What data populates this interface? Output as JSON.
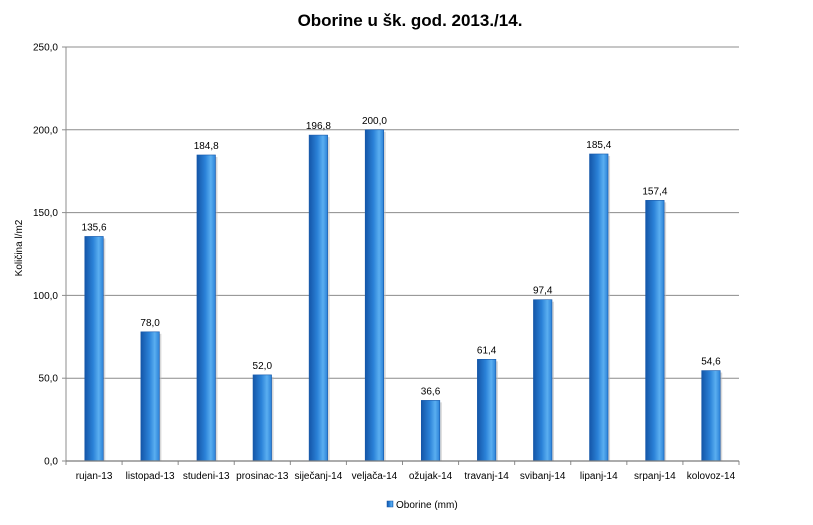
{
  "chart_data": {
    "type": "bar",
    "title": "Oborine u šk. god. 2013./14.",
    "xlabel": "",
    "ylabel": "Količina l/m2",
    "categories": [
      "rujan-13",
      "listopad-13",
      "studeni-13",
      "prosinac-13",
      "siječanj-14",
      "veljača-14",
      "ožujak-14",
      "travanj-14",
      "svibanj-14",
      "lipanj-14",
      "srpanj-14",
      "kolovoz-14"
    ],
    "series": [
      {
        "name": "Oborine (mm)",
        "values": [
          135.6,
          78.0,
          184.8,
          52.0,
          196.8,
          200.0,
          36.6,
          61.4,
          97.4,
          185.4,
          157.4,
          54.6
        ],
        "data_labels": [
          "135,6",
          "78,0",
          "184,8",
          "52,0",
          "196,8",
          "200,0",
          "36,6",
          "61,4",
          "97,4",
          "185,4",
          "157,4",
          "54,6"
        ]
      }
    ],
    "ylim": [
      0,
      250
    ],
    "yticks": [
      0,
      50,
      100,
      150,
      200,
      250
    ],
    "ytick_labels": [
      "0,0",
      "50,0",
      "100,0",
      "150,0",
      "200,0",
      "250,0"
    ],
    "grid": true,
    "legend": {
      "position": "bottom-center",
      "entries": [
        "Oborine (mm)"
      ]
    },
    "colors": {
      "bar_light": "#5aaef0",
      "bar_mid": "#2b82d8",
      "bar_dark": "#1456a8",
      "grid": "#8c8c8c",
      "text": "#000000"
    }
  }
}
